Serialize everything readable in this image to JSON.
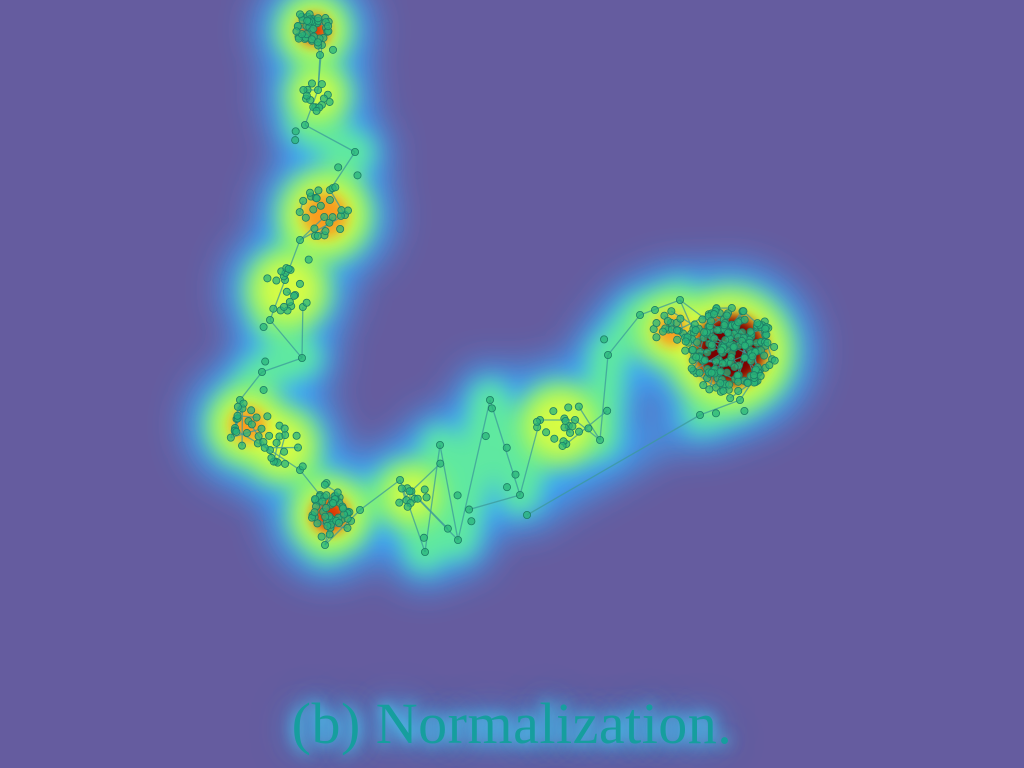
{
  "caption": "(b)  Normalization.",
  "colors": {
    "background": "#655c9f",
    "heat_low": "#39a8ff",
    "heat_mid": "#e6ff3a",
    "heat_high": "#7a0500",
    "node": "#2ab47a",
    "edge": "#3c9a9a",
    "caption": "#169e9e"
  }
}
